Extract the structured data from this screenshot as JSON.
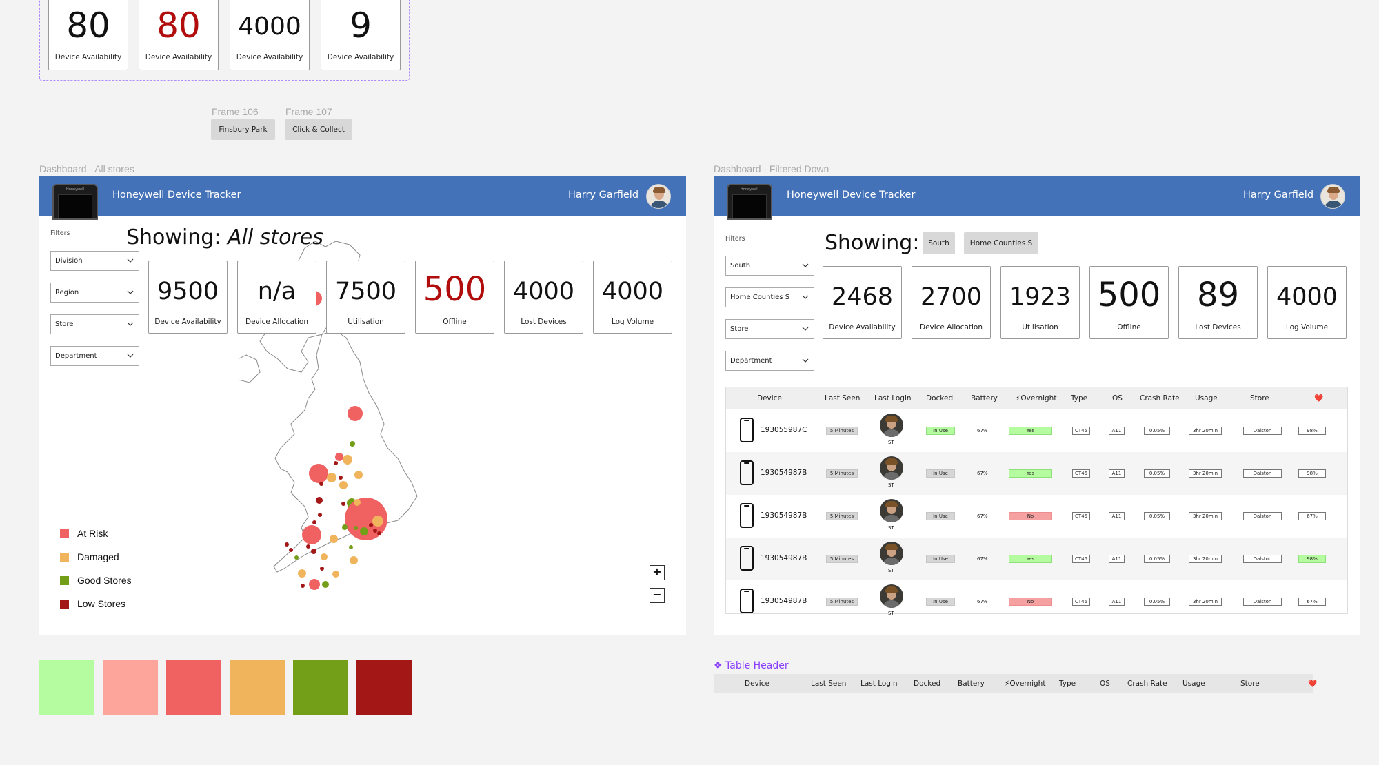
{
  "top_cards": [
    {
      "value": "80",
      "label": "Device Availability",
      "red": false
    },
    {
      "value": "80",
      "label": "Device Availability",
      "red": true
    },
    {
      "value": "4000",
      "label": "Device Availability",
      "red": false
    },
    {
      "value": "9",
      "label": "Device Availability",
      "red": false
    }
  ],
  "frames": [
    {
      "label": "Frame 106",
      "chip": "Finsbury Park"
    },
    {
      "label": "Frame 107",
      "chip": "Click & Collect"
    }
  ],
  "dashboard_all": {
    "frame_label": "Dashboard - All stores",
    "app_title": "Honeywell Device Tracker",
    "device_brand": "Honeywell",
    "user_name": "Harry Garfield",
    "filters_label": "Filters",
    "filters": [
      "Division",
      "Region",
      "Store",
      "Department"
    ],
    "showing_prefix": "Showing:",
    "showing_value": "All stores",
    "stats": [
      {
        "value": "9500",
        "label": "Device Availability",
        "red": false
      },
      {
        "value": "n/a",
        "label": "Device Allocation",
        "red": false
      },
      {
        "value": "7500",
        "label": "Utilisation",
        "red": false
      },
      {
        "value": "500",
        "label": "Offline",
        "red": true
      },
      {
        "value": "4000",
        "label": "Lost Devices",
        "red": false
      },
      {
        "value": "4000",
        "label": "Log Volume",
        "red": false
      }
    ],
    "legend": [
      {
        "label": "At Risk",
        "color": "#f06161"
      },
      {
        "label": "Damaged",
        "color": "#f0b45c"
      },
      {
        "label": "Good Stores",
        "color": "#739e17"
      },
      {
        "label": "Low Stores",
        "color": "#a31717"
      }
    ],
    "zoom_in": "+",
    "zoom_out": "−"
  },
  "dashboard_filtered": {
    "frame_label": "Dashboard - Filtered Down",
    "app_title": "Honeywell Device Tracker",
    "device_brand": "Honeywell",
    "user_name": "Harry Garfield",
    "filters_label": "Filters",
    "filters": [
      "South",
      "Home Counties S",
      "Store",
      "Department"
    ],
    "showing_prefix": "Showing:",
    "chips": [
      "South",
      "Home Counties S"
    ],
    "stats": [
      {
        "value": "2468",
        "label": "Device Availability"
      },
      {
        "value": "2700",
        "label": "Device Allocation"
      },
      {
        "value": "1923",
        "label": "Utilisation"
      },
      {
        "value": "500",
        "label": "Offline"
      },
      {
        "value": "89",
        "label": "Lost Devices"
      },
      {
        "value": "4000",
        "label": "Log Volume"
      }
    ]
  },
  "table": {
    "headers": [
      "Device",
      "Last Seen",
      "Last Login",
      "Docked",
      "Battery",
      "⚡Overnight",
      "Type",
      "OS",
      "Crash Rate",
      "Usage",
      "Store",
      "❤️"
    ],
    "rows": [
      {
        "device": "193055987C",
        "last_seen": "5 Minutes",
        "login": "ST",
        "docked": "In Use",
        "docked_green": true,
        "battery": "67%",
        "overnight": "Yes",
        "overnight_ok": true,
        "type": "CT45",
        "os": "A11",
        "crash": "0.05%",
        "usage": "3hr 20min",
        "store": "Dalston",
        "health": "98%",
        "health_green": false
      },
      {
        "device": "193054987B",
        "last_seen": "5 Minutes",
        "login": "ST",
        "docked": "In Use",
        "docked_green": false,
        "battery": "67%",
        "overnight": "Yes",
        "overnight_ok": true,
        "type": "CT45",
        "os": "A11",
        "crash": "0.05%",
        "usage": "3hr 20min",
        "store": "Dalston",
        "health": "98%",
        "health_green": false
      },
      {
        "device": "193054987B",
        "last_seen": "5 Minutes",
        "login": "ST",
        "docked": "In Use",
        "docked_green": false,
        "battery": "67%",
        "overnight": "No",
        "overnight_ok": false,
        "type": "CT45",
        "os": "A11",
        "crash": "0.05%",
        "usage": "3hr 20min",
        "store": "Dalston",
        "health": "67%",
        "health_green": false
      },
      {
        "device": "193054987B",
        "last_seen": "5 Minutes",
        "login": "ST",
        "docked": "In Use",
        "docked_green": false,
        "battery": "67%",
        "overnight": "Yes",
        "overnight_ok": true,
        "type": "CT45",
        "os": "A11",
        "crash": "0.05%",
        "usage": "3hr 20min",
        "store": "Dalston",
        "health": "98%",
        "health_green": true
      },
      {
        "device": "193054987B",
        "last_seen": "5 Minutes",
        "login": "ST",
        "docked": "In Use",
        "docked_green": false,
        "battery": "67%",
        "overnight": "No",
        "overnight_ok": false,
        "type": "CT45",
        "os": "A11",
        "crash": "0.05%",
        "usage": "3hr 20min",
        "store": "Dalston",
        "health": "67%",
        "health_green": false
      }
    ]
  },
  "component": {
    "label": "❖ Table Header",
    "headers": [
      "Device",
      "Last Seen",
      "Last Login",
      "Docked",
      "Battery",
      "⚡Overnight",
      "Type",
      "OS",
      "Crash Rate",
      "Usage",
      "Store",
      "❤️"
    ]
  },
  "palette": [
    "#b5fba0",
    "#fda59b",
    "#f06161",
    "#f0b45c",
    "#739e17",
    "#a31717"
  ]
}
